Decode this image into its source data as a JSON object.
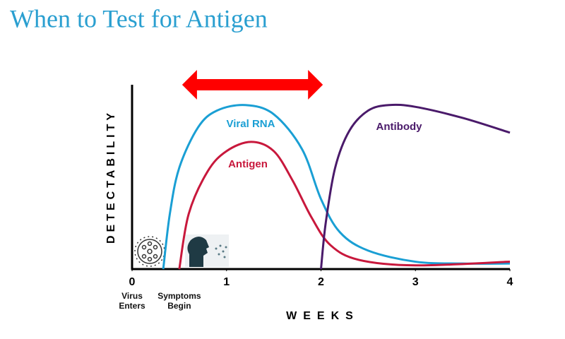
{
  "chart_data": {
    "type": "line",
    "title": "When to Test for Antigen",
    "x_label": "WEEKS",
    "y_label": "DETECTABILITY",
    "xlim": [
      0,
      4
    ],
    "xticks": [
      0,
      1,
      2,
      3,
      4
    ],
    "ylim": [
      0,
      100
    ],
    "annotations": [
      {
        "text": "Virus Enters",
        "x": 0
      },
      {
        "text": "Symptoms Begin",
        "x": 0.5
      }
    ],
    "highlight_range": {
      "values": [
        0.53,
        2.02
      ],
      "color": "#ff0000"
    },
    "series": [
      {
        "name": "Viral RNA",
        "color": "#1a9fd4",
        "x": [
          0.33,
          0.4,
          0.5,
          0.7,
          0.9,
          1.2,
          1.5,
          1.8,
          2.0,
          2.2,
          2.5,
          3.0,
          3.5,
          4.0
        ],
        "values": [
          0,
          30,
          55,
          77,
          86,
          89,
          84,
          65,
          38,
          20,
          10,
          4,
          3,
          3
        ]
      },
      {
        "name": "Antigen",
        "color": "#c8183c",
        "x": [
          0.5,
          0.6,
          0.8,
          1.0,
          1.26,
          1.5,
          1.7,
          1.9,
          2.1,
          2.4,
          3.0,
          4.0
        ],
        "values": [
          0,
          30,
          53,
          64,
          69,
          64,
          48,
          28,
          13,
          5,
          2,
          4
        ]
      },
      {
        "name": "Antibody",
        "color": "#4a1a6a",
        "x": [
          2.0,
          2.05,
          2.15,
          2.3,
          2.5,
          2.72,
          3.0,
          3.5,
          4.0
        ],
        "values": [
          0,
          25,
          55,
          75,
          86,
          89,
          88,
          82,
          74
        ]
      }
    ]
  }
}
